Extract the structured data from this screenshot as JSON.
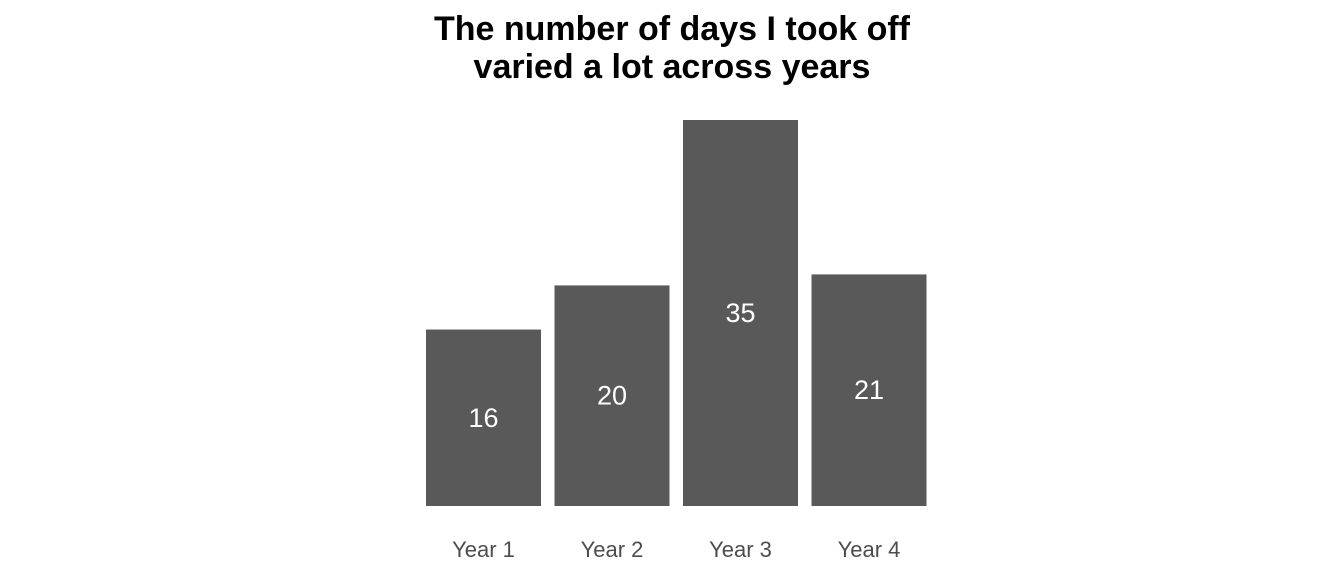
{
  "chart_data": {
    "type": "bar",
    "title_lines": [
      "The number of days I took off",
      "varied a lot across years"
    ],
    "categories": [
      "Year 1",
      "Year 2",
      "Year 3",
      "Year 4"
    ],
    "values": [
      16,
      20,
      35,
      21
    ],
    "xlabel": "",
    "ylabel": "",
    "ylim": [
      0,
      35
    ],
    "grid": false,
    "legend": "none",
    "data_labels": true,
    "bar_color": "#595959",
    "label_color": "#ffffff",
    "tick_color": "#4d4d4d"
  }
}
